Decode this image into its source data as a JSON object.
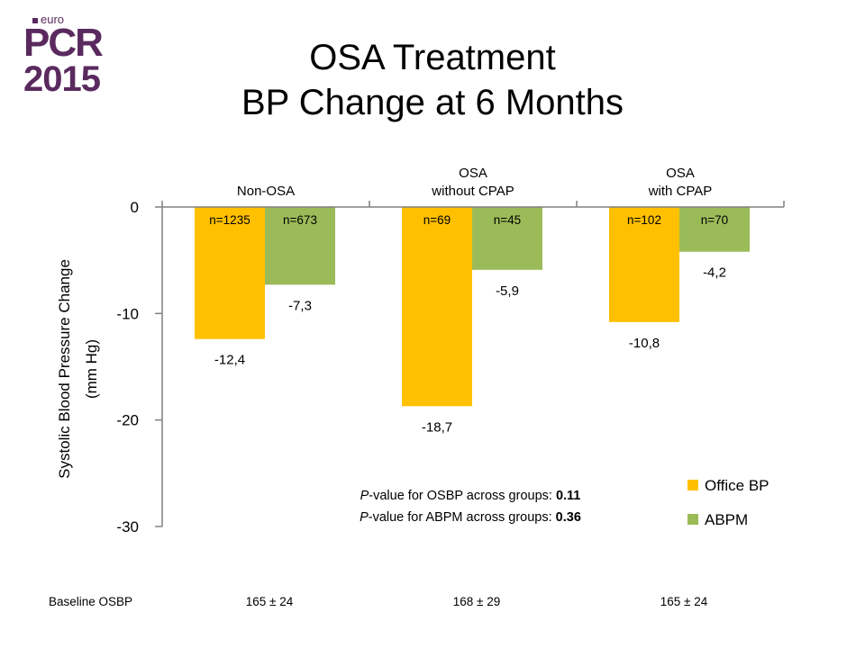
{
  "logo": {
    "euro": "euro",
    "pcr": "PCR",
    "year": "2015"
  },
  "title": {
    "line1": "OSA Treatment",
    "line2": "BP Change at 6 Months"
  },
  "chart_data": {
    "type": "bar",
    "title": "OSA Treatment BP Change at 6 Months",
    "ylabel": [
      "Systolic Blood Pressure Change",
      "(mm Hg)"
    ],
    "ylim": [
      -30,
      0
    ],
    "yticks": [
      {
        "value": 0,
        "label": "0"
      },
      {
        "value": -10,
        "label": "-10"
      },
      {
        "value": -20,
        "label": "-20"
      },
      {
        "value": -30,
        "label": "-30"
      }
    ],
    "groups": [
      {
        "label_lines": [
          "Non-OSA"
        ]
      },
      {
        "label_lines": [
          "OSA",
          "without CPAP"
        ]
      },
      {
        "label_lines": [
          "OSA",
          "with CPAP"
        ]
      }
    ],
    "series": [
      {
        "name": "Office BP",
        "color": "#FFC000",
        "values": [
          -12.4,
          -18.7,
          -10.8
        ],
        "value_labels": [
          "-12,4",
          "-18,7",
          "-10,8"
        ],
        "n_labels": [
          "n=1235",
          "n=69",
          "n=102"
        ]
      },
      {
        "name": "ABPM",
        "color": "#9BBB59",
        "values": [
          -7.3,
          -5.9,
          -4.2
        ],
        "value_labels": [
          "-7,3",
          "-5,9",
          "-4,2"
        ],
        "n_labels": [
          "n=673",
          "n=45",
          "n=70"
        ]
      }
    ],
    "legend_position": "bottom-right",
    "annotations": [
      {
        "prefix": "P",
        "text": "-value for OSBP across groups: ",
        "bold": "0.11"
      },
      {
        "prefix": "P",
        "text": "-value for ABPM across groups: ",
        "bold": "0.36"
      }
    ],
    "baseline": {
      "label": "Baseline OSBP",
      "values": [
        "165 ± 24",
        "168 ± 29",
        "165 ± 24"
      ]
    }
  }
}
